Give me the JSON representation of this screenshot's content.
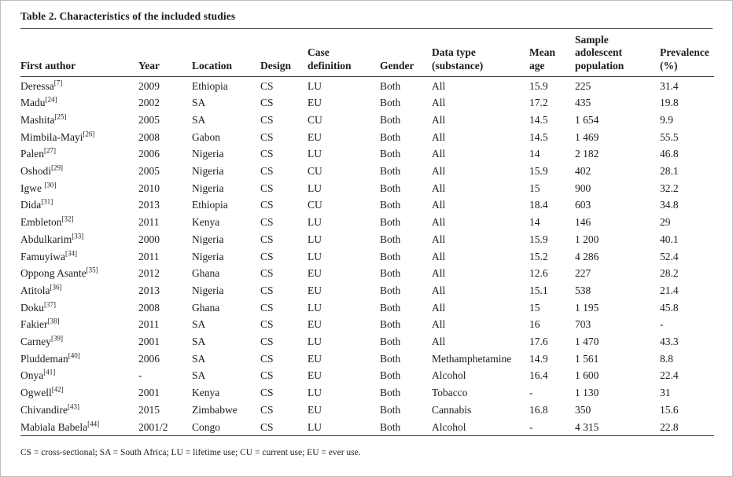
{
  "title": "Table 2. Characteristics of the included studies",
  "footnote": "CS = cross-sectional; SA = South Africa; LU = lifetime use; CU = current use; EU = ever use.",
  "table": {
    "columns": [
      {
        "key": "author",
        "label_lines": [
          "First author"
        ]
      },
      {
        "key": "year",
        "label_lines": [
          "Year"
        ]
      },
      {
        "key": "location",
        "label_lines": [
          "Location"
        ]
      },
      {
        "key": "design",
        "label_lines": [
          "Design"
        ]
      },
      {
        "key": "case-definition",
        "label_lines": [
          "Case",
          "definition"
        ]
      },
      {
        "key": "gender",
        "label_lines": [
          "Gender"
        ]
      },
      {
        "key": "data-type",
        "label_lines": [
          "Data type",
          "(substance)"
        ]
      },
      {
        "key": "mean-age",
        "label_lines": [
          "Mean",
          "age"
        ]
      },
      {
        "key": "sample",
        "label_lines": [
          "Sample",
          "adolescent",
          "population"
        ]
      },
      {
        "key": "prevalence",
        "label_lines": [
          "Prevalence",
          "(%)"
        ]
      }
    ],
    "rows": [
      {
        "author": "Deressa",
        "ref": "[7]",
        "year": "2009",
        "location": "Ethiopia",
        "design": "CS",
        "case_definition": "LU",
        "gender": "Both",
        "data_type": "All",
        "mean_age": "15.9",
        "sample": "225",
        "prevalence": "31.4"
      },
      {
        "author": "Madu",
        "ref": "[24]",
        "year": "2002",
        "location": "SA",
        "design": "CS",
        "case_definition": "EU",
        "gender": "Both",
        "data_type": "All",
        "mean_age": "17.2",
        "sample": "435",
        "prevalence": "19.8"
      },
      {
        "author": "Mashita",
        "ref": "[25]",
        "year": "2005",
        "location": "SA",
        "design": "CS",
        "case_definition": "CU",
        "gender": "Both",
        "data_type": "All",
        "mean_age": "14.5",
        "sample": "1 654",
        "prevalence": "9.9"
      },
      {
        "author": "Mimbila-Mayi",
        "ref": "[26]",
        "year": "2008",
        "location": "Gabon",
        "design": "CS",
        "case_definition": "EU",
        "gender": "Both",
        "data_type": "All",
        "mean_age": "14.5",
        "sample": "1 469",
        "prevalence": "55.5"
      },
      {
        "author": "Palen",
        "ref": "[27]",
        "year": "2006",
        "location": "Nigeria",
        "design": "CS",
        "case_definition": "LU",
        "gender": "Both",
        "data_type": "All",
        "mean_age": "14",
        "sample": "2 182",
        "prevalence": "46.8"
      },
      {
        "author": "Oshodi",
        "ref": "[29]",
        "year": "2005",
        "location": "Nigeria",
        "design": "CS",
        "case_definition": "CU",
        "gender": "Both",
        "data_type": "All",
        "mean_age": "15.9",
        "sample": "402",
        "prevalence": "28.1"
      },
      {
        "author": "Igwe ",
        "ref": "[30]",
        "year": "2010",
        "location": "Nigeria",
        "design": "CS",
        "case_definition": "LU",
        "gender": "Both",
        "data_type": "All",
        "mean_age": "15",
        "sample": "900",
        "prevalence": "32.2"
      },
      {
        "author": "Dida",
        "ref": "[31]",
        "year": "2013",
        "location": "Ethiopia",
        "design": "CS",
        "case_definition": "CU",
        "gender": "Both",
        "data_type": "All",
        "mean_age": "18.4",
        "sample": "603",
        "prevalence": "34.8"
      },
      {
        "author": "Embleton",
        "ref": "[32]",
        "year": "2011",
        "location": "Kenya",
        "design": "CS",
        "case_definition": "LU",
        "gender": "Both",
        "data_type": "All",
        "mean_age": "14",
        "sample": "146",
        "prevalence": "29"
      },
      {
        "author": "Abdulkarim",
        "ref": "[33]",
        "year": "2000",
        "location": "Nigeria",
        "design": "CS",
        "case_definition": "LU",
        "gender": "Both",
        "data_type": "All",
        "mean_age": "15.9",
        "sample": "1 200",
        "prevalence": "40.1"
      },
      {
        "author": "Famuyiwa",
        "ref": "[34]",
        "year": "2011",
        "location": "Nigeria",
        "design": "CS",
        "case_definition": "LU",
        "gender": "Both",
        "data_type": "All",
        "mean_age": "15.2",
        "sample": "4 286",
        "prevalence": "52.4"
      },
      {
        "author": "Oppong Asante",
        "ref": "[35]",
        "year": "2012",
        "location": "Ghana",
        "design": "CS",
        "case_definition": "EU",
        "gender": "Both",
        "data_type": "All",
        "mean_age": "12.6",
        "sample": "227",
        "prevalence": "28.2"
      },
      {
        "author": "Atitola",
        "ref": "[36]",
        "year": "2013",
        "location": "Nigeria",
        "design": "CS",
        "case_definition": "EU",
        "gender": "Both",
        "data_type": "All",
        "mean_age": "15.1",
        "sample": "538",
        "prevalence": "21.4"
      },
      {
        "author": "Doku",
        "ref": "[37]",
        "year": "2008",
        "location": "Ghana",
        "design": "CS",
        "case_definition": "LU",
        "gender": "Both",
        "data_type": "All",
        "mean_age": "15",
        "sample": "1 195",
        "prevalence": "45.8"
      },
      {
        "author": "Fakier",
        "ref": "[38]",
        "year": "2011",
        "location": "SA",
        "design": "CS",
        "case_definition": "EU",
        "gender": "Both",
        "data_type": "All",
        "mean_age": "16",
        "sample": "703",
        "prevalence": "-"
      },
      {
        "author": "Carney",
        "ref": "[39]",
        "year": "2001",
        "location": "SA",
        "design": "CS",
        "case_definition": "LU",
        "gender": "Both",
        "data_type": "All",
        "mean_age": "17.6",
        "sample": "1 470",
        "prevalence": "43.3"
      },
      {
        "author": "Pluddeman",
        "ref": "[40]",
        "year": "2006",
        "location": "SA",
        "design": "CS",
        "case_definition": "EU",
        "gender": "Both",
        "data_type": "Methamphetamine",
        "mean_age": "14.9",
        "sample": "1 561",
        "prevalence": "8.8"
      },
      {
        "author": "Onya",
        "ref": "[41]",
        "year": "-",
        "location": "SA",
        "design": "CS",
        "case_definition": "EU",
        "gender": "Both",
        "data_type": "Alcohol",
        "mean_age": "16.4",
        "sample": "1 600",
        "prevalence": "22.4"
      },
      {
        "author": "Ogwell",
        "ref": "[42]",
        "year": "2001",
        "location": "Kenya",
        "design": "CS",
        "case_definition": "LU",
        "gender": "Both",
        "data_type": "Tobacco",
        "mean_age": "-",
        "sample": "1 130",
        "prevalence": "31"
      },
      {
        "author": "Chivandire",
        "ref": "[43]",
        "year": "2015",
        "location": "Zimbabwe",
        "design": "CS",
        "case_definition": "EU",
        "gender": "Both",
        "data_type": "Cannabis",
        "mean_age": "16.8",
        "sample": "350",
        "prevalence": "15.6"
      },
      {
        "author": "Mabiala Babela",
        "ref": "[44]",
        "year": "2001/2",
        "location": "Congo",
        "design": "CS",
        "case_definition": "LU",
        "gender": "Both",
        "data_type": "Alcohol",
        "mean_age": "-",
        "sample": "4 315",
        "prevalence": "22.8"
      }
    ]
  }
}
